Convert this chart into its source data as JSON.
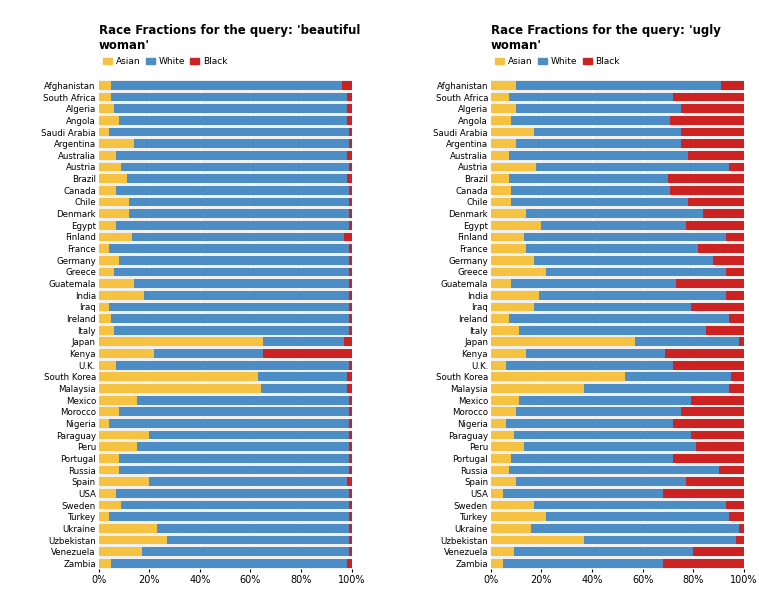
{
  "countries": [
    "Afghanistan",
    "South Africa",
    "Algeria",
    "Angola",
    "Saudi Arabia",
    "Argentina",
    "Australia",
    "Austria",
    "Brazil",
    "Canada",
    "Chile",
    "Denmark",
    "Egypt",
    "Finland",
    "France",
    "Germany",
    "Greece",
    "Guatemala",
    "India",
    "Iraq",
    "Ireland",
    "Italy",
    "Japan",
    "Kenya",
    "U.K.",
    "South Korea",
    "Malaysia",
    "Mexico",
    "Morocco",
    "Nigeria",
    "Paraguay",
    "Peru",
    "Portugal",
    "Russia",
    "Spain",
    "USA",
    "Sweden",
    "Turkey",
    "Ukraine",
    "Uzbekistan",
    "Venezuela",
    "Zambia"
  ],
  "beautiful": {
    "asian": [
      0.05,
      0.05,
      0.06,
      0.08,
      0.04,
      0.14,
      0.07,
      0.09,
      0.11,
      0.07,
      0.12,
      0.12,
      0.07,
      0.13,
      0.04,
      0.08,
      0.06,
      0.14,
      0.18,
      0.04,
      0.05,
      0.06,
      0.65,
      0.22,
      0.07,
      0.63,
      0.64,
      0.15,
      0.08,
      0.04,
      0.2,
      0.15,
      0.08,
      0.08,
      0.2,
      0.07,
      0.09,
      0.04,
      0.23,
      0.27,
      0.17,
      0.05
    ],
    "white": [
      0.91,
      0.93,
      0.92,
      0.9,
      0.95,
      0.85,
      0.91,
      0.9,
      0.87,
      0.92,
      0.87,
      0.87,
      0.92,
      0.84,
      0.95,
      0.91,
      0.93,
      0.85,
      0.81,
      0.95,
      0.94,
      0.93,
      0.32,
      0.43,
      0.92,
      0.35,
      0.34,
      0.84,
      0.91,
      0.95,
      0.79,
      0.84,
      0.91,
      0.91,
      0.78,
      0.92,
      0.9,
      0.95,
      0.76,
      0.72,
      0.82,
      0.93
    ],
    "black": [
      0.04,
      0.02,
      0.02,
      0.02,
      0.01,
      0.01,
      0.02,
      0.01,
      0.02,
      0.01,
      0.01,
      0.01,
      0.01,
      0.03,
      0.01,
      0.01,
      0.01,
      0.01,
      0.01,
      0.01,
      0.01,
      0.01,
      0.03,
      0.35,
      0.01,
      0.02,
      0.02,
      0.01,
      0.01,
      0.01,
      0.01,
      0.01,
      0.01,
      0.01,
      0.02,
      0.01,
      0.01,
      0.01,
      0.01,
      0.01,
      0.01,
      0.02
    ]
  },
  "ugly": {
    "asian": [
      0.1,
      0.07,
      0.1,
      0.08,
      0.17,
      0.1,
      0.07,
      0.18,
      0.07,
      0.08,
      0.08,
      0.14,
      0.2,
      0.13,
      0.14,
      0.17,
      0.22,
      0.08,
      0.19,
      0.17,
      0.07,
      0.11,
      0.57,
      0.14,
      0.06,
      0.53,
      0.37,
      0.11,
      0.1,
      0.06,
      0.09,
      0.13,
      0.08,
      0.07,
      0.1,
      0.05,
      0.17,
      0.22,
      0.16,
      0.37,
      0.09,
      0.05
    ],
    "white": [
      0.81,
      0.65,
      0.65,
      0.63,
      0.58,
      0.65,
      0.71,
      0.76,
      0.63,
      0.63,
      0.7,
      0.7,
      0.57,
      0.8,
      0.68,
      0.71,
      0.71,
      0.65,
      0.74,
      0.62,
      0.87,
      0.74,
      0.41,
      0.55,
      0.66,
      0.42,
      0.57,
      0.68,
      0.65,
      0.66,
      0.7,
      0.68,
      0.64,
      0.83,
      0.67,
      0.63,
      0.76,
      0.72,
      0.82,
      0.6,
      0.71,
      0.63
    ],
    "black": [
      0.09,
      0.28,
      0.25,
      0.29,
      0.25,
      0.25,
      0.22,
      0.06,
      0.3,
      0.29,
      0.22,
      0.16,
      0.23,
      0.07,
      0.18,
      0.12,
      0.07,
      0.27,
      0.07,
      0.21,
      0.06,
      0.15,
      0.02,
      0.31,
      0.28,
      0.05,
      0.06,
      0.21,
      0.25,
      0.28,
      0.21,
      0.19,
      0.28,
      0.1,
      0.23,
      0.32,
      0.07,
      0.06,
      0.02,
      0.03,
      0.2,
      0.32
    ]
  },
  "colors": {
    "asian": "#F5C242",
    "white": "#4C8DC5",
    "black": "#CC2222"
  },
  "title_beautiful": "Race Fractions for the query: 'beautiful\nwoman'",
  "title_ugly": "Race Fractions for the query: 'ugly\nwoman'",
  "bg_color": "#F0F0F0",
  "figsize": [
    7.59,
    6.12
  ],
  "dpi": 100
}
